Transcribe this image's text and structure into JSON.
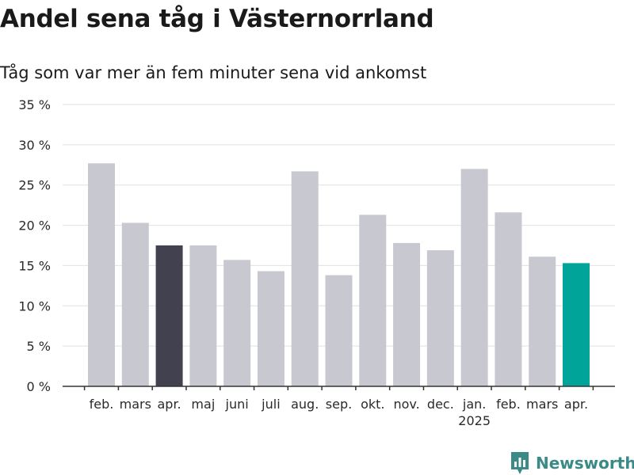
{
  "chart_data": {
    "type": "bar",
    "title": "Andel sena tåg i Västernorrland",
    "subtitle": "Tåg som var mer än fem minuter sena vid ankomst",
    "categories": [
      "feb.",
      "mars",
      "apr.",
      "maj",
      "juni",
      "juli",
      "aug.",
      "sep.",
      "okt.",
      "nov.",
      "dec.",
      "jan.",
      "feb.",
      "mars",
      "apr."
    ],
    "year_labels": [
      {
        "index": 11,
        "label": "2025"
      }
    ],
    "values": [
      27.7,
      20.3,
      17.5,
      17.5,
      15.7,
      14.3,
      26.7,
      13.8,
      21.3,
      17.8,
      16.9,
      27.0,
      21.6,
      16.1,
      15.3
    ],
    "bar_colors": [
      "#c8c8d0",
      "#c8c8d0",
      "#42414f",
      "#c8c8d0",
      "#c8c8d0",
      "#c8c8d0",
      "#c8c8d0",
      "#c8c8d0",
      "#c8c8d0",
      "#c8c8d0",
      "#c8c8d0",
      "#c8c8d0",
      "#c8c8d0",
      "#c8c8d0",
      "#00a498"
    ],
    "ylim": [
      0,
      35
    ],
    "yticks": [
      0,
      5,
      10,
      15,
      20,
      25,
      30,
      35
    ],
    "ytick_suffix": " %",
    "grid": true,
    "xlabel": "",
    "ylabel": ""
  },
  "brand": {
    "name": "Newsworthy",
    "color": "#3a8a86",
    "icon": "newsworthy-logo-icon"
  }
}
